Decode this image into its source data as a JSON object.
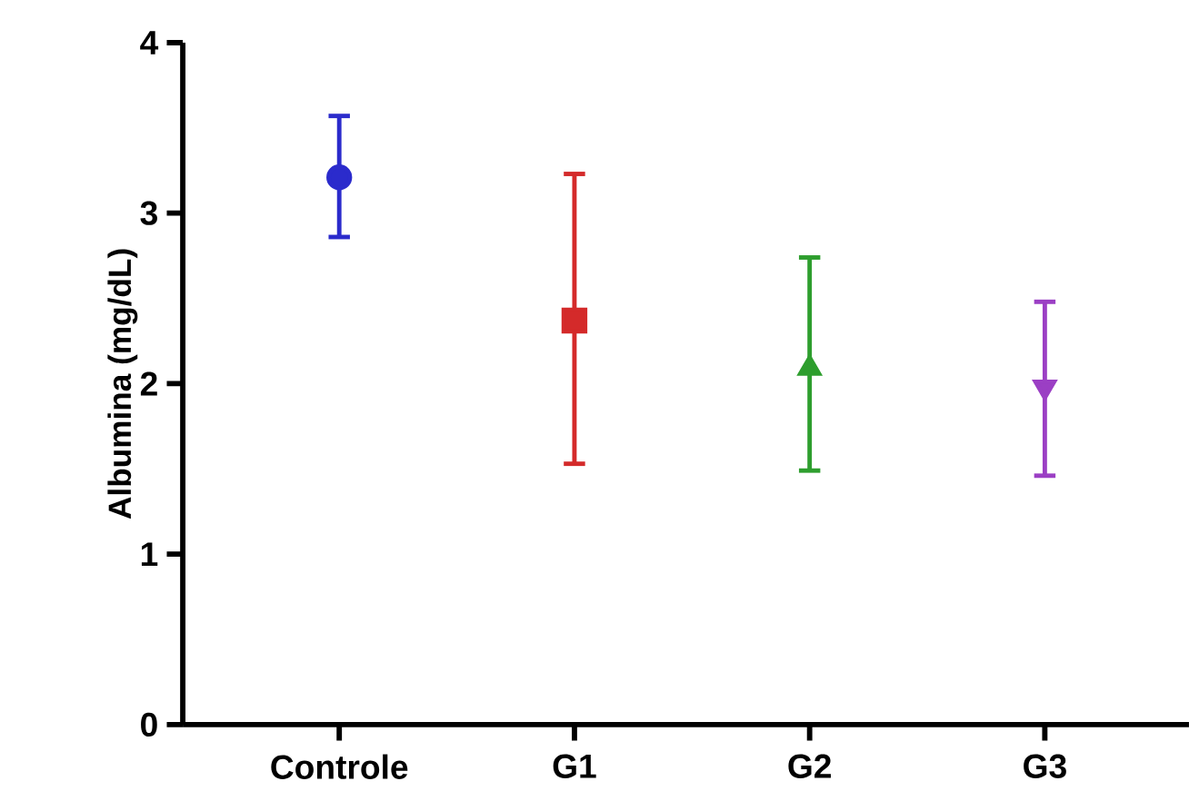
{
  "chart_data": {
    "type": "scatter",
    "ylabel": "Albumina (mg/dL)",
    "categories": [
      "Controle",
      "G1",
      "G2",
      "G3"
    ],
    "ylim": [
      0,
      4
    ],
    "yticks": [
      0,
      1,
      2,
      3,
      4
    ],
    "grid": false,
    "series": [
      {
        "color": "#2b2bcc",
        "marker": "circle",
        "values": [
          3.21,
          null,
          null,
          null
        ],
        "errors": [
          [
            2.86,
            3.57
          ],
          null,
          null,
          null
        ]
      },
      {
        "color": "#d42a2a",
        "marker": "square",
        "values": [
          null,
          2.37,
          null,
          null
        ],
        "errors": [
          null,
          [
            1.53,
            3.23
          ],
          null,
          null
        ]
      },
      {
        "color": "#2e9e2e",
        "marker": "triangle",
        "values": [
          null,
          null,
          2.09,
          null
        ],
        "errors": [
          null,
          null,
          [
            1.49,
            2.74
          ],
          null
        ]
      },
      {
        "color": "#9b3fc4",
        "marker": "triangle down",
        "values": [
          null,
          null,
          null,
          1.98
        ],
        "errors": [
          null,
          null,
          null,
          [
            1.46,
            2.48
          ]
        ]
      }
    ]
  }
}
